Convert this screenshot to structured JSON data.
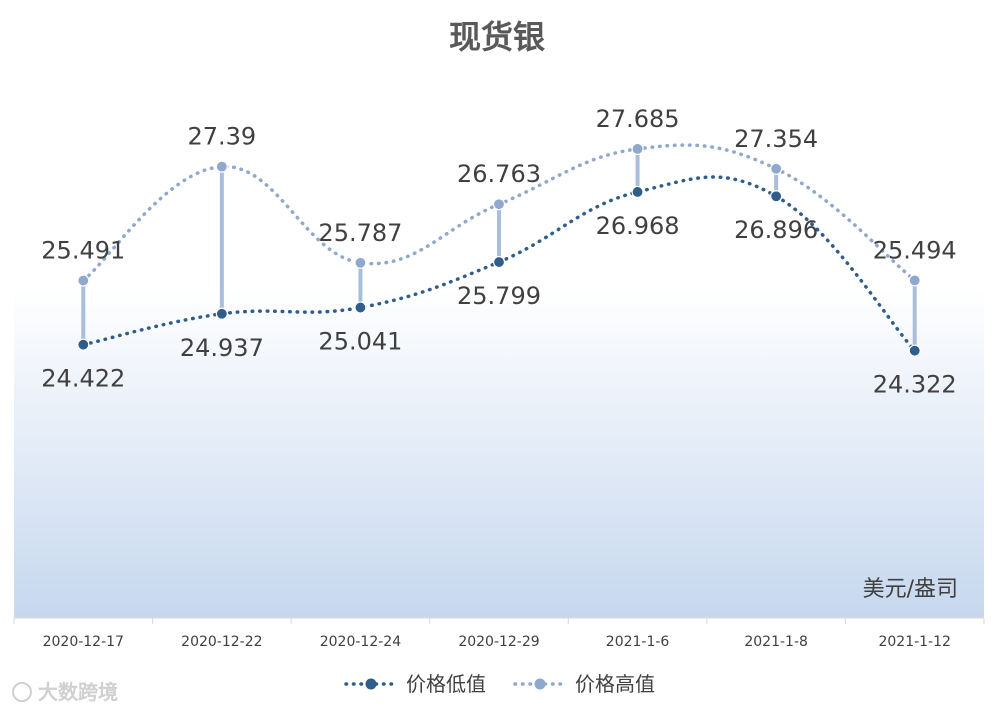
{
  "chart_data": {
    "type": "line",
    "title": "现货银",
    "unit": "美元/盎司",
    "categories": [
      "2020-12-17",
      "2020-12-22",
      "2020-12-24",
      "2020-12-29",
      "2021-1-6",
      "2021-1-8",
      "2021-1-12"
    ],
    "series": [
      {
        "name": "价格低值",
        "values": [
          24.422,
          24.937,
          25.041,
          25.799,
          26.968,
          26.896,
          24.322
        ],
        "color": "#2f5d8c"
      },
      {
        "name": "价格高值",
        "values": [
          25.491,
          27.39,
          25.787,
          26.763,
          27.685,
          27.354,
          25.494
        ],
        "color": "#8fa8cc"
      }
    ],
    "high_low_lines": true,
    "grid": false,
    "legend_position": "bottom",
    "y_axis_visible": false,
    "background_gradient": [
      "#ffffff",
      "#c6d7ee"
    ]
  },
  "watermark": "大数跨境"
}
